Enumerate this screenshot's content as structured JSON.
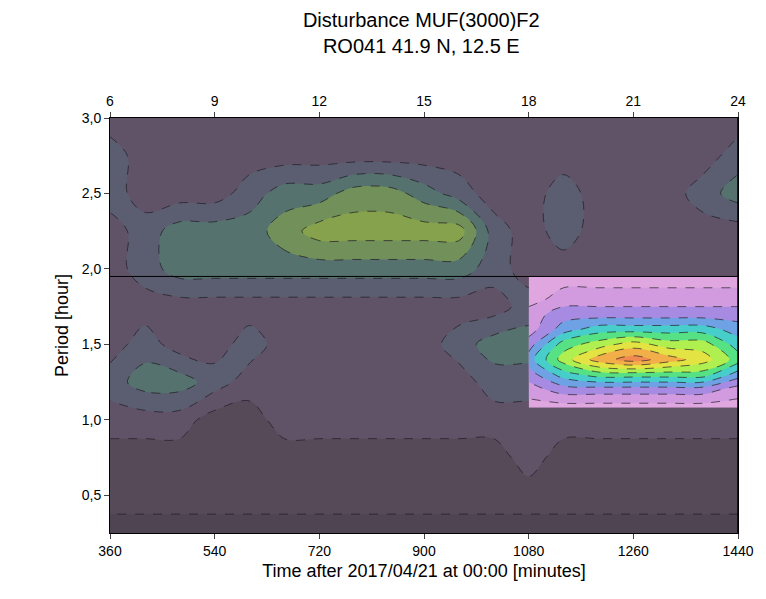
{
  "chart_data": {
    "type": "contour",
    "title": "Disturbance MUF(3000)F2",
    "subtitle": "RO041 41.9 N, 12.5 E",
    "x_label": "Time after 2017/04/21 at 00:00 [minutes]",
    "y_label": "Period [hour]",
    "xlim": [
      360,
      1440
    ],
    "xticks": [
      360,
      540,
      720,
      900,
      1080,
      1260,
      1440
    ],
    "x2lim": [
      6,
      24
    ],
    "x2ticks": [
      6,
      9,
      12,
      15,
      18,
      21,
      24
    ],
    "ylim": [
      0.25,
      3.0
    ],
    "yticks": [
      {
        "value": 0.5,
        "label": "0,5"
      },
      {
        "value": 1.0,
        "label": "1,0"
      },
      {
        "value": 1.5,
        "label": "1,5"
      },
      {
        "value": 2.0,
        "label": "2,0"
      },
      {
        "value": 2.5,
        "label": "2,5"
      },
      {
        "value": 3.0,
        "label": "3,0"
      }
    ],
    "grid": false,
    "reference_y": 1.95,
    "x": [
      360,
      420,
      480,
      540,
      600,
      660,
      720,
      780,
      840,
      900,
      960,
      1020,
      1080,
      1140,
      1200,
      1260,
      1320,
      1380,
      1440
    ],
    "y": [
      0.25,
      0.5,
      0.75,
      1.0,
      1.25,
      1.5,
      1.75,
      2.0,
      2.25,
      2.5,
      2.75,
      3.0
    ],
    "z": [
      [
        1,
        1,
        1,
        1,
        1,
        1,
        1,
        1,
        1,
        1,
        1,
        1,
        1,
        1,
        1,
        1,
        1,
        1,
        1
      ],
      [
        2,
        2,
        2,
        2,
        2,
        2,
        2,
        2,
        2,
        2,
        2,
        2,
        2,
        2,
        2,
        2,
        2,
        2,
        2
      ],
      [
        2,
        2,
        2,
        2,
        2,
        2,
        2,
        2,
        2,
        2,
        2,
        2,
        3,
        2,
        2,
        2,
        2,
        2,
        2
      ],
      [
        3,
        3,
        3,
        2,
        2,
        3,
        3,
        3,
        3,
        3,
        3,
        3,
        3,
        3,
        3,
        3,
        3,
        3,
        3
      ],
      [
        4,
        5,
        5,
        4,
        3,
        3,
        3,
        3,
        3,
        3,
        3,
        4,
        4,
        4,
        4,
        4,
        4,
        4,
        4
      ],
      [
        3,
        4,
        3,
        3,
        4,
        3,
        3,
        3,
        3,
        3,
        4,
        5,
        5,
        5,
        5,
        5,
        5,
        5,
        5
      ],
      [
        3,
        3,
        3,
        3,
        3,
        3,
        3,
        3,
        3,
        3,
        3,
        3,
        4,
        4,
        4,
        4,
        4,
        3,
        3
      ],
      [
        3,
        4,
        5,
        5,
        5,
        5,
        5,
        5,
        5,
        5,
        5,
        4,
        3,
        3,
        3,
        3,
        3,
        3,
        3
      ],
      [
        3,
        4,
        5,
        5,
        5,
        6,
        7,
        7,
        7,
        7,
        7,
        4,
        3,
        4,
        3,
        3,
        3,
        3,
        3
      ],
      [
        4,
        3,
        3,
        3,
        4,
        5,
        5,
        6,
        6,
        5,
        4,
        3,
        3,
        4,
        3,
        3,
        3,
        4,
        5
      ],
      [
        4,
        3,
        3,
        3,
        3,
        3,
        3,
        3,
        3,
        3,
        3,
        3,
        3,
        3,
        3,
        3,
        3,
        3,
        4
      ],
      [
        3,
        3,
        3,
        3,
        3,
        3,
        3,
        3,
        3,
        3,
        3,
        3,
        3,
        3,
        3,
        3,
        3,
        3,
        3
      ]
    ],
    "highlight": {
      "x": [
        1080,
        1140,
        1200,
        1260,
        1320,
        1380,
        1440
      ],
      "y": [
        1.08,
        1.2,
        1.3,
        1.4,
        1.5,
        1.6,
        1.7,
        1.8,
        1.95
      ],
      "z": [
        [
          1,
          1,
          1,
          1,
          1,
          1,
          1
        ],
        [
          2,
          3,
          3,
          3,
          3,
          3,
          2
        ],
        [
          3,
          5,
          6,
          6,
          6,
          6,
          4
        ],
        [
          4,
          7,
          9,
          10,
          9,
          8,
          6
        ],
        [
          3,
          6,
          7,
          8,
          7,
          7,
          5
        ],
        [
          2,
          4,
          5,
          5,
          5,
          5,
          4
        ],
        [
          2,
          3,
          3,
          3,
          3,
          3,
          3
        ],
        [
          1,
          2,
          2,
          2,
          2,
          2,
          2
        ],
        [
          1,
          1,
          1,
          1,
          1,
          1,
          1
        ]
      ]
    }
  }
}
